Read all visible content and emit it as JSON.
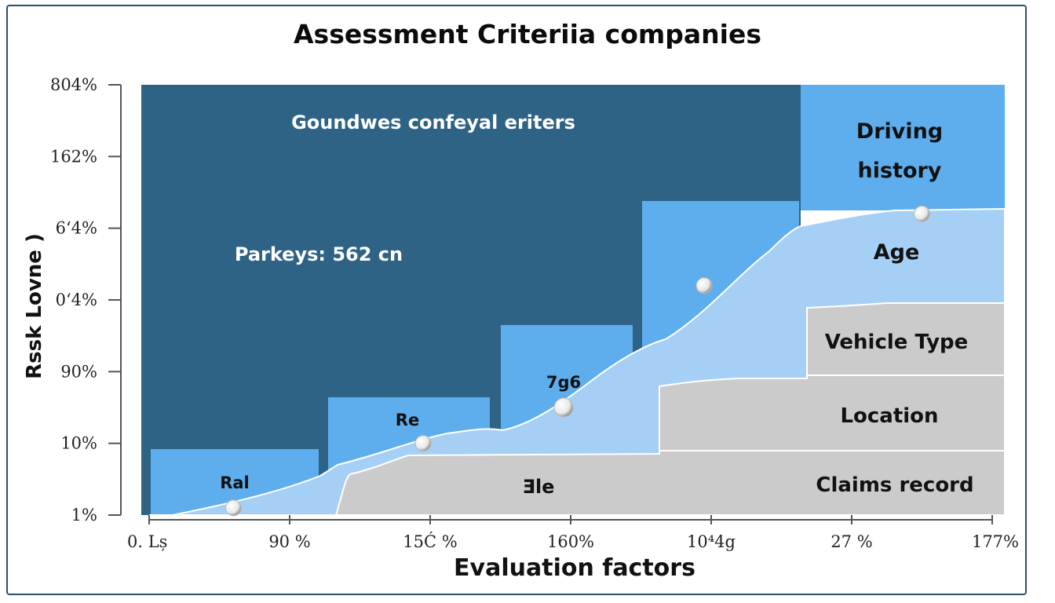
{
  "chart_data": {
    "type": "area",
    "title": "Assessment Criteriia companies",
    "xlabel": "Evaluation factors",
    "ylabel": "Rssk Lovne )",
    "x_ticks": [
      "0. Lș",
      "90 %",
      "15Ć %",
      "160%",
      "10⁴4g",
      "27 %",
      "177%"
    ],
    "y_ticks": [
      "1%",
      "10%",
      "90%",
      "0‘4%",
      "6‘4%",
      "162%",
      "804%"
    ],
    "annotations": {
      "top_left": "Goundwes confeyal eriters",
      "mid_left": "Parkeys: 562 cn",
      "step1": "Ral",
      "step2": "Re",
      "step3": "7g6",
      "bottom_center": "Ǝle"
    },
    "categories": [
      "Driving history",
      "Age",
      "Vehicle Type",
      "Location",
      "Claims record"
    ],
    "curve": {
      "name": "",
      "points_x_index": [
        0.6,
        1.95,
        2.95,
        3.95,
        5.5
      ],
      "points_y_index": [
        0.1,
        1.0,
        1.5,
        3.2,
        4.2
      ]
    },
    "colors": {
      "background_block": "#2e6386",
      "bar_blue": "#5eaeee",
      "area_light": "#a5cff5",
      "area_gray": "#cbcbcb",
      "frame": "#2a4f6b"
    },
    "grid": false,
    "legend": "none"
  }
}
